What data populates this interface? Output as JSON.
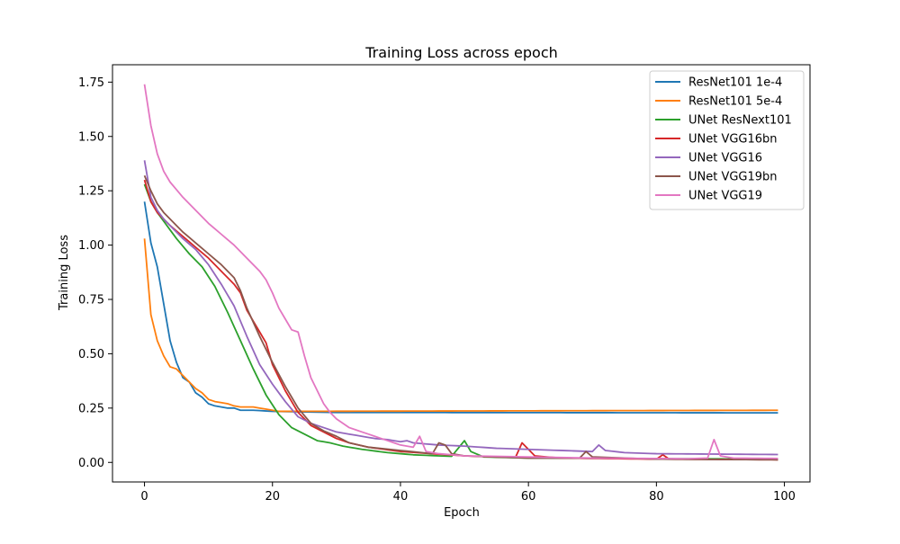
{
  "chart_data": {
    "type": "line",
    "title": "Training Loss across epoch",
    "xlabel": "Epoch",
    "ylabel": "Training Loss",
    "xlim": [
      -5,
      104
    ],
    "ylim": [
      -0.09,
      1.83
    ],
    "xticks": [
      0,
      20,
      40,
      60,
      80,
      100
    ],
    "xtick_labels": [
      "0",
      "20",
      "40",
      "60",
      "80",
      "100"
    ],
    "yticks": [
      0.0,
      0.25,
      0.5,
      0.75,
      1.0,
      1.25,
      1.5,
      1.75
    ],
    "ytick_labels": [
      "0.00",
      "0.25",
      "0.50",
      "0.75",
      "1.00",
      "1.25",
      "1.50",
      "1.75"
    ],
    "grid": false,
    "legend_position": "top-right",
    "series": [
      {
        "name": "ResNet101 1e-4",
        "color": "#1f77b4",
        "keypoints": [
          [
            0,
            1.2
          ],
          [
            1,
            1.01
          ],
          [
            2,
            0.9
          ],
          [
            3,
            0.73
          ],
          [
            4,
            0.56
          ],
          [
            5,
            0.46
          ],
          [
            6,
            0.39
          ],
          [
            7,
            0.37
          ],
          [
            8,
            0.32
          ],
          [
            9,
            0.3
          ],
          [
            10,
            0.27
          ],
          [
            11,
            0.26
          ],
          [
            12,
            0.255
          ],
          [
            13,
            0.25
          ],
          [
            14,
            0.25
          ],
          [
            15,
            0.24
          ],
          [
            17,
            0.24
          ],
          [
            20,
            0.235
          ],
          [
            30,
            0.23
          ],
          [
            100,
            0.228
          ]
        ]
      },
      {
        "name": "ResNet101 5e-4",
        "color": "#ff7f0e",
        "keypoints": [
          [
            0,
            1.03
          ],
          [
            1,
            0.68
          ],
          [
            2,
            0.56
          ],
          [
            3,
            0.49
          ],
          [
            4,
            0.44
          ],
          [
            5,
            0.43
          ],
          [
            6,
            0.4
          ],
          [
            7,
            0.37
          ],
          [
            8,
            0.34
          ],
          [
            9,
            0.32
          ],
          [
            10,
            0.29
          ],
          [
            11,
            0.28
          ],
          [
            12,
            0.275
          ],
          [
            13,
            0.27
          ],
          [
            14,
            0.26
          ],
          [
            15,
            0.255
          ],
          [
            17,
            0.255
          ],
          [
            19,
            0.245
          ],
          [
            21,
            0.235
          ],
          [
            100,
            0.24
          ]
        ]
      },
      {
        "name": "UNet ResNext101",
        "color": "#2ca02c",
        "keypoints": [
          [
            0,
            1.28
          ],
          [
            1,
            1.2
          ],
          [
            2,
            1.15
          ],
          [
            3,
            1.11
          ],
          [
            4,
            1.07
          ],
          [
            5,
            1.03
          ],
          [
            7,
            0.96
          ],
          [
            9,
            0.9
          ],
          [
            11,
            0.81
          ],
          [
            13,
            0.69
          ],
          [
            15,
            0.56
          ],
          [
            17,
            0.43
          ],
          [
            19,
            0.31
          ],
          [
            21,
            0.22
          ],
          [
            23,
            0.16
          ],
          [
            25,
            0.13
          ],
          [
            27,
            0.1
          ],
          [
            29,
            0.09
          ],
          [
            31,
            0.075
          ],
          [
            34,
            0.06
          ],
          [
            38,
            0.045
          ],
          [
            42,
            0.035
          ],
          [
            46,
            0.03
          ],
          [
            48,
            0.028
          ],
          [
            50,
            0.1
          ],
          [
            51,
            0.05
          ],
          [
            53,
            0.025
          ],
          [
            60,
            0.02
          ],
          [
            100,
            0.015
          ]
        ]
      },
      {
        "name": "UNet VGG16bn",
        "color": "#d62728",
        "keypoints": [
          [
            0,
            1.3
          ],
          [
            1,
            1.2
          ],
          [
            2,
            1.15
          ],
          [
            3,
            1.12
          ],
          [
            4,
            1.09
          ],
          [
            6,
            1.04
          ],
          [
            8,
            0.99
          ],
          [
            10,
            0.94
          ],
          [
            12,
            0.88
          ],
          [
            14,
            0.82
          ],
          [
            15,
            0.78
          ],
          [
            16,
            0.7
          ],
          [
            18,
            0.6
          ],
          [
            19,
            0.55
          ],
          [
            20,
            0.45
          ],
          [
            22,
            0.33
          ],
          [
            24,
            0.23
          ],
          [
            26,
            0.17
          ],
          [
            28,
            0.14
          ],
          [
            30,
            0.11
          ],
          [
            32,
            0.09
          ],
          [
            35,
            0.07
          ],
          [
            40,
            0.05
          ],
          [
            45,
            0.04
          ],
          [
            50,
            0.03
          ],
          [
            55,
            0.025
          ],
          [
            58,
            0.025
          ],
          [
            59,
            0.09
          ],
          [
            61,
            0.03
          ],
          [
            65,
            0.02
          ],
          [
            80,
            0.015
          ],
          [
            81,
            0.035
          ],
          [
            82,
            0.015
          ],
          [
            100,
            0.012
          ]
        ]
      },
      {
        "name": "UNet VGG16",
        "color": "#9467bd",
        "keypoints": [
          [
            0,
            1.39
          ],
          [
            1,
            1.22
          ],
          [
            2,
            1.16
          ],
          [
            3,
            1.12
          ],
          [
            4,
            1.09
          ],
          [
            6,
            1.03
          ],
          [
            8,
            0.98
          ],
          [
            10,
            0.91
          ],
          [
            12,
            0.82
          ],
          [
            14,
            0.72
          ],
          [
            16,
            0.58
          ],
          [
            18,
            0.45
          ],
          [
            20,
            0.36
          ],
          [
            22,
            0.28
          ],
          [
            24,
            0.21
          ],
          [
            26,
            0.18
          ],
          [
            28,
            0.16
          ],
          [
            30,
            0.14
          ],
          [
            32,
            0.13
          ],
          [
            34,
            0.12
          ],
          [
            36,
            0.11
          ],
          [
            38,
            0.105
          ],
          [
            40,
            0.095
          ],
          [
            41,
            0.1
          ],
          [
            42,
            0.09
          ],
          [
            44,
            0.085
          ],
          [
            46,
            0.08
          ],
          [
            50,
            0.075
          ],
          [
            55,
            0.065
          ],
          [
            60,
            0.06
          ],
          [
            65,
            0.055
          ],
          [
            70,
            0.05
          ],
          [
            71,
            0.08
          ],
          [
            72,
            0.055
          ],
          [
            75,
            0.045
          ],
          [
            80,
            0.04
          ],
          [
            90,
            0.038
          ],
          [
            100,
            0.036
          ]
        ]
      },
      {
        "name": "UNet VGG19bn",
        "color": "#8c564b",
        "keypoints": [
          [
            0,
            1.32
          ],
          [
            1,
            1.25
          ],
          [
            2,
            1.19
          ],
          [
            3,
            1.15
          ],
          [
            4,
            1.12
          ],
          [
            6,
            1.06
          ],
          [
            8,
            1.01
          ],
          [
            10,
            0.96
          ],
          [
            12,
            0.91
          ],
          [
            14,
            0.85
          ],
          [
            15,
            0.79
          ],
          [
            16,
            0.71
          ],
          [
            18,
            0.58
          ],
          [
            20,
            0.46
          ],
          [
            22,
            0.35
          ],
          [
            24,
            0.25
          ],
          [
            26,
            0.18
          ],
          [
            28,
            0.145
          ],
          [
            30,
            0.12
          ],
          [
            32,
            0.09
          ],
          [
            35,
            0.07
          ],
          [
            40,
            0.055
          ],
          [
            45,
            0.04
          ],
          [
            46,
            0.09
          ],
          [
            47,
            0.08
          ],
          [
            48,
            0.04
          ],
          [
            50,
            0.03
          ],
          [
            55,
            0.025
          ],
          [
            60,
            0.02
          ],
          [
            68,
            0.02
          ],
          [
            69,
            0.05
          ],
          [
            70,
            0.025
          ],
          [
            80,
            0.015
          ],
          [
            100,
            0.012
          ]
        ]
      },
      {
        "name": "UNet VGG19",
        "color": "#e377c2",
        "keypoints": [
          [
            0,
            1.74
          ],
          [
            1,
            1.55
          ],
          [
            2,
            1.42
          ],
          [
            3,
            1.34
          ],
          [
            4,
            1.29
          ],
          [
            6,
            1.22
          ],
          [
            8,
            1.16
          ],
          [
            10,
            1.1
          ],
          [
            12,
            1.05
          ],
          [
            14,
            1.0
          ],
          [
            16,
            0.94
          ],
          [
            18,
            0.88
          ],
          [
            19,
            0.84
          ],
          [
            20,
            0.78
          ],
          [
            21,
            0.71
          ],
          [
            22,
            0.66
          ],
          [
            23,
            0.61
          ],
          [
            24,
            0.6
          ],
          [
            25,
            0.49
          ],
          [
            26,
            0.39
          ],
          [
            27,
            0.33
          ],
          [
            28,
            0.27
          ],
          [
            29,
            0.23
          ],
          [
            30,
            0.2
          ],
          [
            32,
            0.16
          ],
          [
            34,
            0.14
          ],
          [
            36,
            0.12
          ],
          [
            38,
            0.1
          ],
          [
            40,
            0.08
          ],
          [
            42,
            0.07
          ],
          [
            43,
            0.12
          ],
          [
            44,
            0.05
          ],
          [
            46,
            0.04
          ],
          [
            48,
            0.035
          ],
          [
            50,
            0.03
          ],
          [
            55,
            0.028
          ],
          [
            60,
            0.025
          ],
          [
            70,
            0.02
          ],
          [
            80,
            0.018
          ],
          [
            85,
            0.017
          ],
          [
            88,
            0.02
          ],
          [
            89,
            0.105
          ],
          [
            90,
            0.03
          ],
          [
            92,
            0.02
          ],
          [
            100,
            0.018
          ]
        ]
      }
    ]
  }
}
